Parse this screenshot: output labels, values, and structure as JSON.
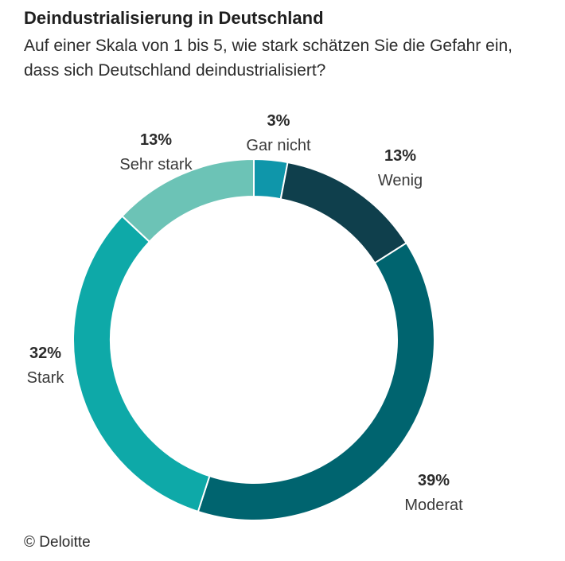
{
  "title": "Deindustrialisierung in Deutschland",
  "subtitle": "Auf einer Skala von 1 bis 5, wie stark schätzen Sie die Gefahr ein, dass sich Deutschland deindustrialisiert?",
  "source": "© Deloitte",
  "chart_data": {
    "type": "pie",
    "variant": "donut",
    "slices": [
      {
        "label": "Gar nicht",
        "value": 3,
        "value_label": "3%",
        "color": "#0f96aa"
      },
      {
        "label": "Wenig",
        "value": 13,
        "value_label": "13%",
        "color": "#0f3f4c"
      },
      {
        "label": "Moderat",
        "value": 39,
        "value_label": "39%",
        "color": "#00646f"
      },
      {
        "label": "Stark",
        "value": 32,
        "value_label": "32%",
        "color": "#0ea9a8"
      },
      {
        "label": "Sehr stark",
        "value": 13,
        "value_label": "13%",
        "color": "#6cc3b6"
      }
    ]
  }
}
